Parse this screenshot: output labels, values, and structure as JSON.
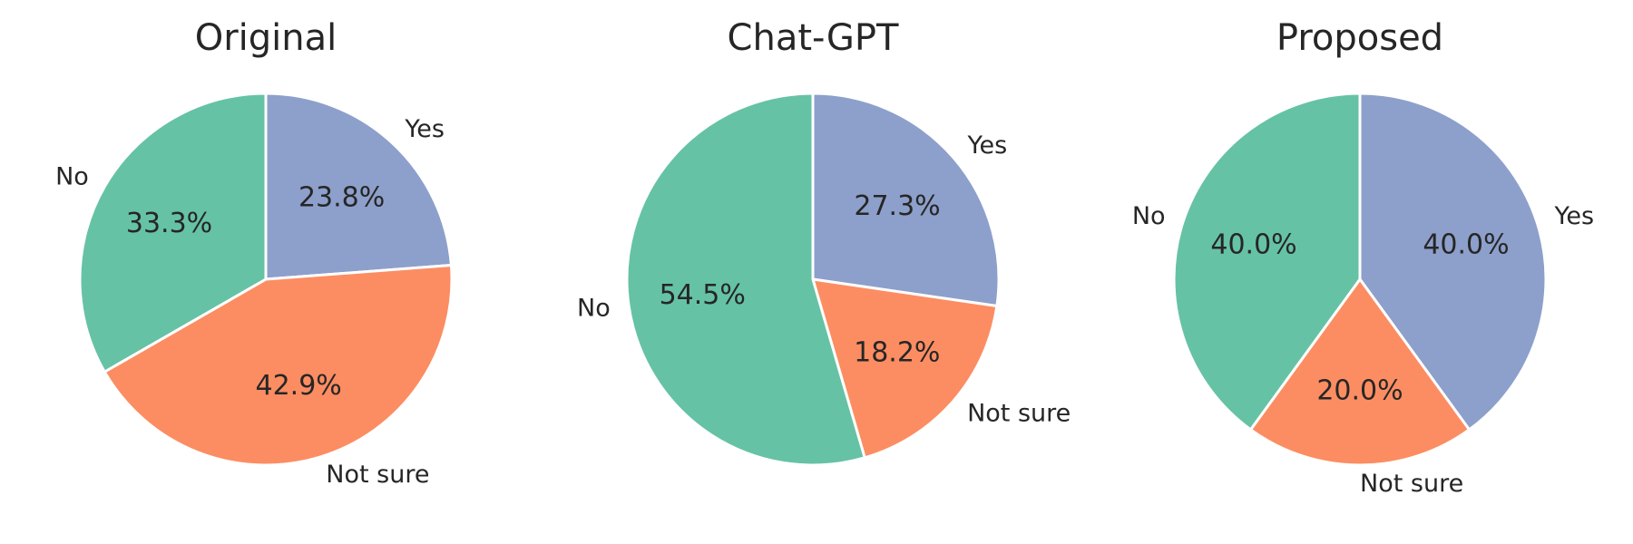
{
  "chart_data": [
    {
      "type": "pie",
      "title": "Original",
      "labels": [
        "Yes",
        "Not sure",
        "No"
      ],
      "values": [
        23.8,
        42.9,
        33.3
      ],
      "value_labels": [
        "23.8%",
        "42.9%",
        "33.3%"
      ],
      "colors": [
        "#8da0cb",
        "#fc8d62",
        "#66c2a5"
      ],
      "start_angle_deg": 90,
      "direction": "clockwise"
    },
    {
      "type": "pie",
      "title": "Chat-GPT",
      "labels": [
        "Yes",
        "Not sure",
        "No"
      ],
      "values": [
        27.3,
        18.2,
        54.5
      ],
      "value_labels": [
        "27.3%",
        "18.2%",
        "54.5%"
      ],
      "colors": [
        "#8da0cb",
        "#fc8d62",
        "#66c2a5"
      ],
      "start_angle_deg": 90,
      "direction": "clockwise"
    },
    {
      "type": "pie",
      "title": "Proposed",
      "labels": [
        "Yes",
        "Not sure",
        "No"
      ],
      "values": [
        40.0,
        20.0,
        40.0
      ],
      "value_labels": [
        "40.0%",
        "20.0%",
        "40.0%"
      ],
      "colors": [
        "#8da0cb",
        "#fc8d62",
        "#66c2a5"
      ],
      "start_angle_deg": 90,
      "direction": "clockwise"
    }
  ]
}
